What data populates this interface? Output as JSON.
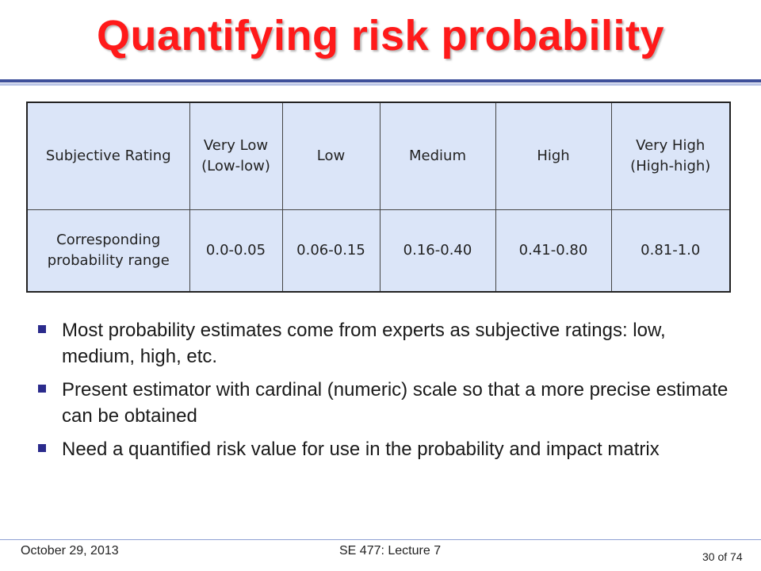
{
  "slide": {
    "title": "Quantifying risk probability"
  },
  "table": {
    "rows": [
      [
        "Subjective Rating",
        "Very Low (Low-low)",
        "Low",
        "Medium",
        "High",
        "Very High (High-high)"
      ],
      [
        "Corresponding probability range",
        "0.0-0.05",
        "0.06-0.15",
        "0.16-0.40",
        "0.41-0.80",
        "0.81-1.0"
      ]
    ]
  },
  "bullets": [
    "Most probability estimates come from experts as subjective ratings: low, medium, high, etc.",
    "Present estimator with cardinal (numeric) scale so that a more precise estimate can be obtained",
    "Need a quantified risk value for use in the probability and impact matrix"
  ],
  "footer": {
    "date": "October 29, 2013",
    "course": "SE 477: Lecture 7",
    "page": "30 of 74"
  }
}
